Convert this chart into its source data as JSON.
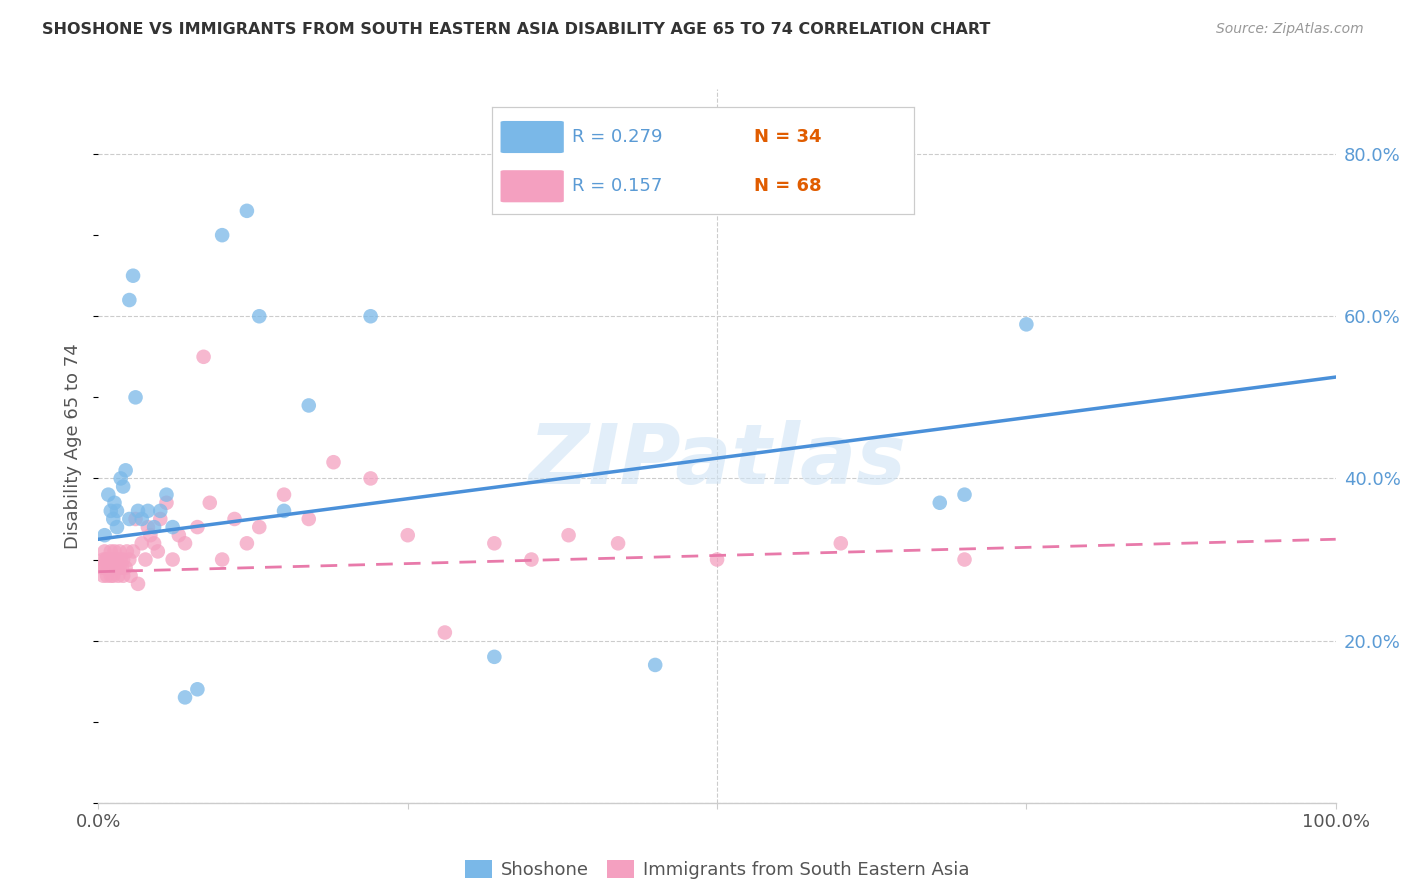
{
  "title": "SHOSHONE VS IMMIGRANTS FROM SOUTH EASTERN ASIA DISABILITY AGE 65 TO 74 CORRELATION CHART",
  "source": "Source: ZipAtlas.com",
  "ylabel": "Disability Age 65 to 74",
  "y_ticks": [
    0.0,
    0.2,
    0.4,
    0.6,
    0.8
  ],
  "y_tick_labels": [
    "",
    "20.0%",
    "40.0%",
    "60.0%",
    "80.0%"
  ],
  "x_lim": [
    0.0,
    1.0
  ],
  "y_lim": [
    0.0,
    0.88
  ],
  "shoshone_color": "#7ab8e8",
  "immigrant_color": "#f4a0c0",
  "trendline_blue_color": "#4a90d9",
  "trendline_pink_color": "#e87aaa",
  "watermark": "ZIPatlas",
  "shoshone_x": [
    0.005,
    0.008,
    0.01,
    0.012,
    0.013,
    0.015,
    0.015,
    0.018,
    0.02,
    0.022,
    0.025,
    0.025,
    0.028,
    0.03,
    0.032,
    0.035,
    0.04,
    0.045,
    0.05,
    0.055,
    0.06,
    0.07,
    0.08,
    0.1,
    0.12,
    0.13,
    0.15,
    0.17,
    0.22,
    0.32,
    0.45,
    0.68,
    0.7,
    0.75
  ],
  "shoshone_y": [
    0.33,
    0.38,
    0.36,
    0.35,
    0.37,
    0.34,
    0.36,
    0.4,
    0.39,
    0.41,
    0.35,
    0.62,
    0.65,
    0.5,
    0.36,
    0.35,
    0.36,
    0.34,
    0.36,
    0.38,
    0.34,
    0.13,
    0.14,
    0.7,
    0.73,
    0.6,
    0.36,
    0.49,
    0.6,
    0.18,
    0.17,
    0.37,
    0.38,
    0.59
  ],
  "immigrant_x": [
    0.003,
    0.004,
    0.004,
    0.005,
    0.005,
    0.006,
    0.006,
    0.007,
    0.007,
    0.008,
    0.008,
    0.009,
    0.01,
    0.01,
    0.01,
    0.011,
    0.012,
    0.012,
    0.013,
    0.013,
    0.014,
    0.015,
    0.015,
    0.016,
    0.017,
    0.017,
    0.018,
    0.019,
    0.02,
    0.02,
    0.022,
    0.023,
    0.025,
    0.026,
    0.028,
    0.03,
    0.032,
    0.035,
    0.038,
    0.04,
    0.042,
    0.045,
    0.048,
    0.05,
    0.055,
    0.06,
    0.065,
    0.07,
    0.08,
    0.085,
    0.09,
    0.1,
    0.11,
    0.12,
    0.13,
    0.15,
    0.17,
    0.19,
    0.22,
    0.25,
    0.28,
    0.32,
    0.35,
    0.38,
    0.42,
    0.5,
    0.6,
    0.7
  ],
  "immigrant_y": [
    0.29,
    0.3,
    0.28,
    0.29,
    0.31,
    0.3,
    0.29,
    0.3,
    0.28,
    0.29,
    0.3,
    0.29,
    0.31,
    0.28,
    0.3,
    0.29,
    0.3,
    0.28,
    0.29,
    0.31,
    0.3,
    0.29,
    0.3,
    0.28,
    0.29,
    0.31,
    0.3,
    0.29,
    0.3,
    0.28,
    0.29,
    0.31,
    0.3,
    0.28,
    0.31,
    0.35,
    0.27,
    0.32,
    0.3,
    0.34,
    0.33,
    0.32,
    0.31,
    0.35,
    0.37,
    0.3,
    0.33,
    0.32,
    0.34,
    0.55,
    0.37,
    0.3,
    0.35,
    0.32,
    0.34,
    0.38,
    0.35,
    0.42,
    0.4,
    0.33,
    0.21,
    0.32,
    0.3,
    0.33,
    0.32,
    0.3,
    0.32,
    0.3
  ],
  "blue_trend_x0": 0.0,
  "blue_trend_y0": 0.325,
  "blue_trend_x1": 1.0,
  "blue_trend_y1": 0.525,
  "pink_trend_x0": 0.0,
  "pink_trend_y0": 0.285,
  "pink_trend_x1": 1.0,
  "pink_trend_y1": 0.325,
  "legend1_r": "0.279",
  "legend1_n": "34",
  "legend2_r": "0.157",
  "legend2_n": "68"
}
